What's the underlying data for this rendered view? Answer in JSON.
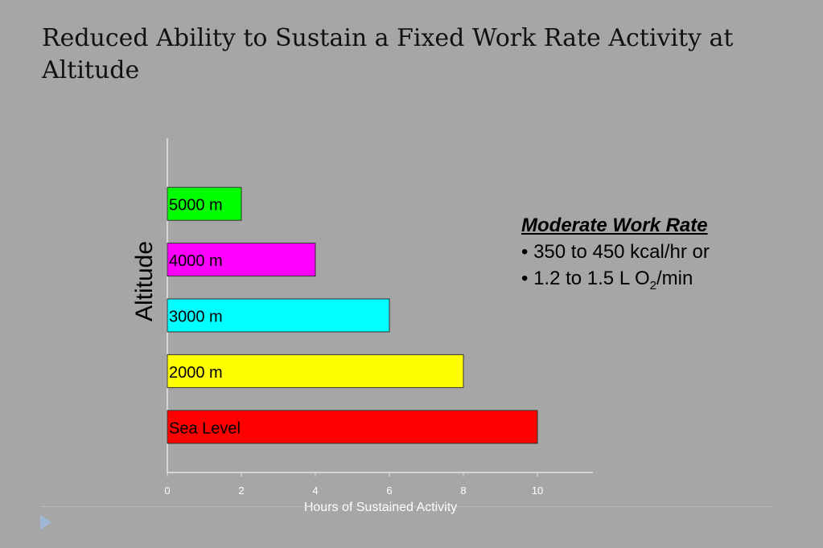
{
  "slide": {
    "title": "Reduced Ability to Sustain a Fixed Work Rate Activity at Altitude"
  },
  "info_box": {
    "heading": "Moderate Work Rate",
    "bullet_1": "• 350 to 450 kcal/hr or",
    "bullet_2_prefix": "• 1.2 to 1.5 L O",
    "bullet_2_subscript": "2",
    "bullet_2_suffix": "/min"
  },
  "chart_data": {
    "type": "bar",
    "orientation": "horizontal",
    "categories": [
      "Sea Level",
      "2000 m",
      "3000 m",
      "4000 m",
      "5000 m"
    ],
    "values": [
      10,
      8,
      6,
      4,
      2
    ],
    "colors": [
      "#ff0000",
      "#ffff00",
      "#00ffff",
      "#ff00ff",
      "#00ff00"
    ],
    "xlabel": "Hours of Sustained Activity",
    "ylabel": "Altitude",
    "xlim": [
      0,
      11.5
    ],
    "xticks": [
      0,
      2,
      4,
      6,
      8,
      10
    ],
    "grid": false,
    "legend": "none"
  }
}
